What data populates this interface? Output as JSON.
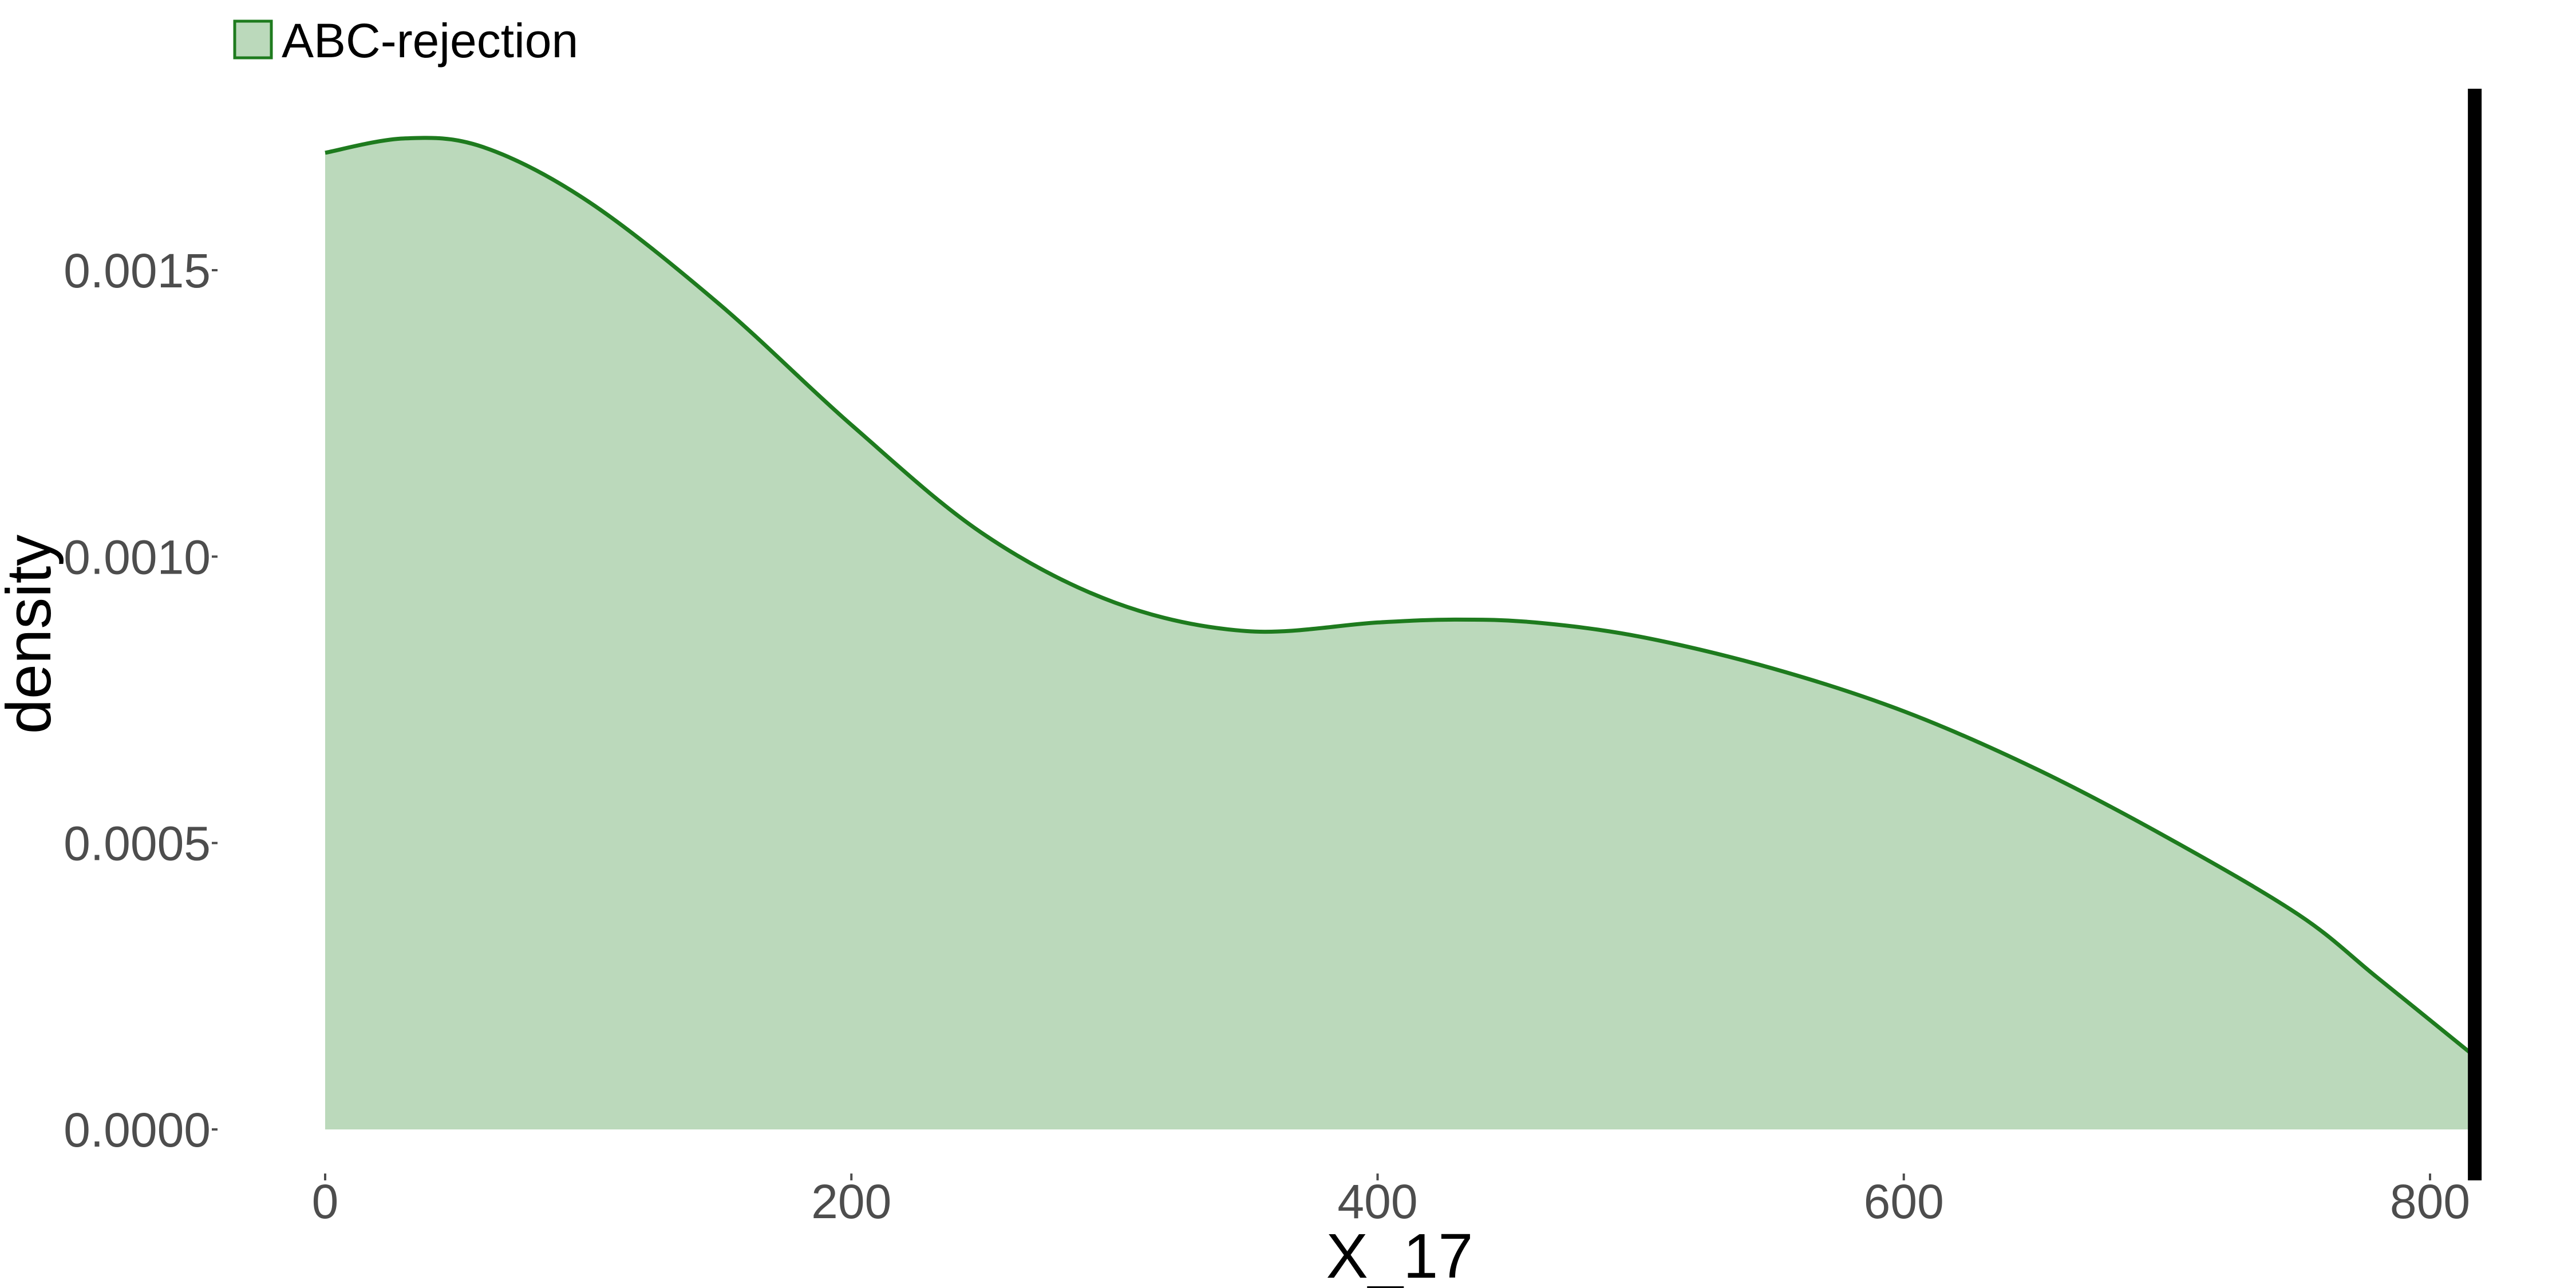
{
  "chart_data": {
    "type": "area",
    "title": "",
    "xlabel": "X_17",
    "ylabel": "density",
    "xlim": [
      -5,
      825
    ],
    "ylim": [
      0,
      0.00185
    ],
    "x_ticks": [
      0,
      200,
      400,
      600,
      800
    ],
    "x_tick_labels": [
      "0",
      "200",
      "400",
      "600",
      "800"
    ],
    "y_ticks": [
      0.0,
      0.0005,
      0.001,
      0.0015
    ],
    "y_tick_labels": [
      "0.0000",
      "0.0005",
      "0.0010",
      "0.0015"
    ],
    "grid": false,
    "legend": {
      "position": "top-left",
      "entries": [
        "ABC-rejection"
      ]
    },
    "series": [
      {
        "name": "ABC-rejection",
        "fill_color": "#bbd9bb",
        "line_color": "#1e7b1e",
        "points": [
          [
            0,
            0.001705
          ],
          [
            30,
            0.00173
          ],
          [
            60,
            0.001715
          ],
          [
            100,
            0.00162
          ],
          [
            150,
            0.00144
          ],
          [
            200,
            0.00123
          ],
          [
            250,
            0.00104
          ],
          [
            300,
            0.00092
          ],
          [
            350,
            0.00087
          ],
          [
            400,
            0.000885
          ],
          [
            430,
            0.00089
          ],
          [
            460,
            0.000885
          ],
          [
            500,
            0.00086
          ],
          [
            550,
            0.000805
          ],
          [
            600,
            0.00073
          ],
          [
            650,
            0.00063
          ],
          [
            700,
            0.00051
          ],
          [
            750,
            0.000375
          ],
          [
            780,
            0.000265
          ],
          [
            815,
            0.000135
          ]
        ]
      }
    ],
    "reference_line": {
      "x": 817,
      "color": "#000000"
    }
  }
}
